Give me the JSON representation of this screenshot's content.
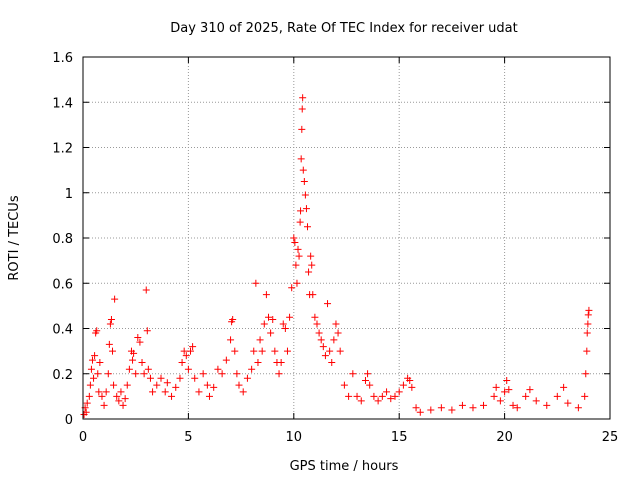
{
  "chart_data": {
    "type": "scatter",
    "title": "Day 310 of 2025, Rate Of TEC Index for receiver udat",
    "xlabel": "GPS time / hours",
    "ylabel": "ROTI / TECUs",
    "xlim": [
      0,
      25
    ],
    "ylim": [
      0,
      1.6
    ],
    "xticks": [
      0,
      5,
      10,
      15,
      20,
      25
    ],
    "xtick_labels": [
      "0",
      "5",
      "10",
      "15",
      "20",
      "25"
    ],
    "yticks": [
      0,
      0.2,
      0.4,
      0.6,
      0.8,
      1.0,
      1.2,
      1.4,
      1.6
    ],
    "ytick_labels": [
      "0",
      "0.2",
      "0.4",
      "0.6",
      "0.8",
      "1",
      "1.2",
      "1.4",
      "1.6"
    ],
    "grid": true,
    "marker": "+",
    "marker_color": "#ff0000",
    "series": [
      {
        "name": "ROTI",
        "points": [
          [
            0.05,
            0.02
          ],
          [
            0.1,
            0.05
          ],
          [
            0.15,
            0.03
          ],
          [
            0.2,
            0.07
          ],
          [
            0.3,
            0.1
          ],
          [
            0.35,
            0.15
          ],
          [
            0.4,
            0.22
          ],
          [
            0.45,
            0.26
          ],
          [
            0.5,
            0.18
          ],
          [
            0.55,
            0.28
          ],
          [
            0.6,
            0.38
          ],
          [
            0.65,
            0.39
          ],
          [
            0.7,
            0.2
          ],
          [
            0.75,
            0.12
          ],
          [
            0.8,
            0.25
          ],
          [
            0.9,
            0.1
          ],
          [
            1.0,
            0.06
          ],
          [
            1.1,
            0.12
          ],
          [
            1.2,
            0.2
          ],
          [
            1.25,
            0.33
          ],
          [
            1.3,
            0.42
          ],
          [
            1.35,
            0.44
          ],
          [
            1.4,
            0.3
          ],
          [
            1.45,
            0.15
          ],
          [
            1.5,
            0.53
          ],
          [
            1.6,
            0.1
          ],
          [
            1.7,
            0.08
          ],
          [
            1.8,
            0.12
          ],
          [
            1.9,
            0.06
          ],
          [
            2.0,
            0.09
          ],
          [
            2.1,
            0.15
          ],
          [
            2.2,
            0.22
          ],
          [
            2.3,
            0.3
          ],
          [
            2.35,
            0.26
          ],
          [
            2.4,
            0.29
          ],
          [
            2.5,
            0.2
          ],
          [
            2.6,
            0.36
          ],
          [
            2.7,
            0.34
          ],
          [
            2.8,
            0.25
          ],
          [
            2.9,
            0.2
          ],
          [
            3.0,
            0.57
          ],
          [
            3.05,
            0.39
          ],
          [
            3.1,
            0.22
          ],
          [
            3.2,
            0.18
          ],
          [
            3.3,
            0.12
          ],
          [
            3.5,
            0.15
          ],
          [
            3.7,
            0.18
          ],
          [
            3.9,
            0.12
          ],
          [
            4.0,
            0.16
          ],
          [
            4.2,
            0.1
          ],
          [
            4.4,
            0.14
          ],
          [
            4.6,
            0.18
          ],
          [
            4.7,
            0.25
          ],
          [
            4.8,
            0.3
          ],
          [
            4.9,
            0.28
          ],
          [
            5.0,
            0.22
          ],
          [
            5.1,
            0.3
          ],
          [
            5.2,
            0.32
          ],
          [
            5.3,
            0.18
          ],
          [
            5.5,
            0.12
          ],
          [
            5.7,
            0.2
          ],
          [
            5.9,
            0.15
          ],
          [
            6.0,
            0.1
          ],
          [
            6.2,
            0.14
          ],
          [
            6.4,
            0.22
          ],
          [
            6.6,
            0.2
          ],
          [
            6.8,
            0.26
          ],
          [
            7.0,
            0.35
          ],
          [
            7.05,
            0.43
          ],
          [
            7.1,
            0.44
          ],
          [
            7.2,
            0.3
          ],
          [
            7.3,
            0.2
          ],
          [
            7.4,
            0.15
          ],
          [
            7.6,
            0.12
          ],
          [
            7.8,
            0.18
          ],
          [
            8.0,
            0.22
          ],
          [
            8.1,
            0.3
          ],
          [
            8.2,
            0.6
          ],
          [
            8.3,
            0.25
          ],
          [
            8.4,
            0.35
          ],
          [
            8.5,
            0.3
          ],
          [
            8.6,
            0.42
          ],
          [
            8.7,
            0.55
          ],
          [
            8.8,
            0.45
          ],
          [
            8.9,
            0.38
          ],
          [
            9.0,
            0.44
          ],
          [
            9.1,
            0.3
          ],
          [
            9.2,
            0.25
          ],
          [
            9.3,
            0.2
          ],
          [
            9.4,
            0.25
          ],
          [
            9.5,
            0.42
          ],
          [
            9.6,
            0.4
          ],
          [
            9.7,
            0.3
          ],
          [
            9.8,
            0.45
          ],
          [
            9.9,
            0.58
          ],
          [
            10.0,
            0.8
          ],
          [
            10.05,
            0.78
          ],
          [
            10.1,
            0.68
          ],
          [
            10.15,
            0.6
          ],
          [
            10.2,
            0.75
          ],
          [
            10.25,
            0.72
          ],
          [
            10.3,
            0.87
          ],
          [
            10.32,
            0.92
          ],
          [
            10.35,
            1.15
          ],
          [
            10.38,
            1.28
          ],
          [
            10.4,
            1.37
          ],
          [
            10.42,
            1.42
          ],
          [
            10.45,
            1.1
          ],
          [
            10.5,
            1.05
          ],
          [
            10.55,
            0.99
          ],
          [
            10.6,
            0.93
          ],
          [
            10.65,
            0.85
          ],
          [
            10.7,
            0.65
          ],
          [
            10.75,
            0.55
          ],
          [
            10.8,
            0.72
          ],
          [
            10.85,
            0.68
          ],
          [
            10.9,
            0.55
          ],
          [
            11.0,
            0.45
          ],
          [
            11.1,
            0.42
          ],
          [
            11.2,
            0.38
          ],
          [
            11.3,
            0.35
          ],
          [
            11.4,
            0.32
          ],
          [
            11.5,
            0.28
          ],
          [
            11.6,
            0.51
          ],
          [
            11.7,
            0.3
          ],
          [
            11.8,
            0.25
          ],
          [
            11.9,
            0.35
          ],
          [
            12.0,
            0.42
          ],
          [
            12.1,
            0.38
          ],
          [
            12.2,
            0.3
          ],
          [
            12.4,
            0.15
          ],
          [
            12.6,
            0.1
          ],
          [
            12.8,
            0.2
          ],
          [
            13.0,
            0.1
          ],
          [
            13.2,
            0.08
          ],
          [
            13.4,
            0.17
          ],
          [
            13.5,
            0.2
          ],
          [
            13.6,
            0.15
          ],
          [
            13.8,
            0.1
          ],
          [
            14.0,
            0.08
          ],
          [
            14.2,
            0.1
          ],
          [
            14.4,
            0.12
          ],
          [
            14.6,
            0.09
          ],
          [
            14.8,
            0.1
          ],
          [
            15.0,
            0.12
          ],
          [
            15.2,
            0.15
          ],
          [
            15.4,
            0.18
          ],
          [
            15.5,
            0.17
          ],
          [
            15.6,
            0.14
          ],
          [
            15.8,
            0.05
          ],
          [
            16.0,
            0.03
          ],
          [
            16.5,
            0.04
          ],
          [
            17.0,
            0.05
          ],
          [
            17.5,
            0.04
          ],
          [
            18.0,
            0.06
          ],
          [
            18.5,
            0.05
          ],
          [
            19.0,
            0.06
          ],
          [
            19.5,
            0.1
          ],
          [
            19.6,
            0.14
          ],
          [
            19.8,
            0.08
          ],
          [
            20.0,
            0.12
          ],
          [
            20.1,
            0.17
          ],
          [
            20.2,
            0.13
          ],
          [
            20.4,
            0.06
          ],
          [
            20.6,
            0.05
          ],
          [
            21.0,
            0.1
          ],
          [
            21.2,
            0.13
          ],
          [
            21.5,
            0.08
          ],
          [
            22.0,
            0.06
          ],
          [
            22.5,
            0.1
          ],
          [
            22.8,
            0.14
          ],
          [
            23.0,
            0.07
          ],
          [
            23.5,
            0.05
          ],
          [
            23.8,
            0.1
          ],
          [
            23.85,
            0.2
          ],
          [
            23.9,
            0.3
          ],
          [
            23.92,
            0.38
          ],
          [
            23.95,
            0.42
          ],
          [
            23.97,
            0.46
          ],
          [
            24.0,
            0.48
          ]
        ]
      }
    ]
  }
}
